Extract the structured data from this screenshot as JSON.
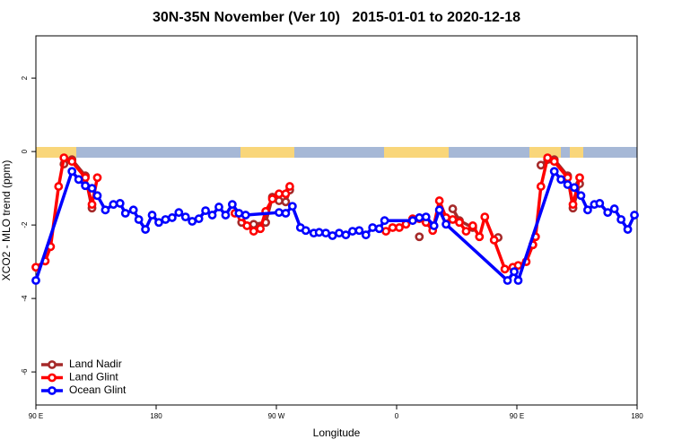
{
  "chart_data": {
    "type": "line",
    "title": "30N-35N November (Ver 10)   2015-01-01 to 2020-12-18",
    "x_label": "Longitude",
    "y_label": "XCO2 - MLO trend (ppm)",
    "xlim": [
      90,
      540
    ],
    "xticks": [
      {
        "value": 90,
        "label": "90 E"
      },
      {
        "value": 180,
        "label": "180"
      },
      {
        "value": 270,
        "label": "90 W"
      },
      {
        "value": 360,
        "label": "0"
      },
      {
        "value": 450,
        "label": "90 E"
      },
      {
        "value": 540,
        "label": "180"
      }
    ],
    "ylim": [
      -6.9,
      3.15
    ],
    "yticks": [
      -6,
      -4,
      -2,
      0,
      2
    ],
    "legend": "bottomleft",
    "series": [
      {
        "name": "Land Nadir",
        "color": "#a52a2a",
        "x": [
          111,
          117,
          127,
          132,
          null,
          244,
          253,
          262,
          267,
          272,
          277,
          280,
          null,
          377,
          null,
          402,
          407,
          417,
          null,
          436,
          null,
          468,
          473,
          478,
          488,
          492,
          497
        ],
        "values": [
          -0.34,
          -0.22,
          -0.66,
          -1.54,
          null,
          -1.93,
          -1.98,
          -1.93,
          -1.24,
          -1.34,
          -1.37,
          -1.05,
          null,
          -2.32,
          null,
          -1.56,
          -1.88,
          -2.07,
          null,
          -2.34,
          null,
          -0.37,
          -0.22,
          -0.22,
          -0.66,
          -1.54,
          -0.88
        ]
      },
      {
        "name": "Land Glint",
        "color": "#ff0000",
        "x": [
          90,
          97,
          101,
          107,
          111,
          117,
          127,
          132,
          136,
          null,
          239,
          244,
          248,
          253,
          258,
          262,
          267,
          272,
          277,
          280,
          null,
          352,
          357,
          362,
          367,
          372,
          377,
          382,
          387,
          392,
          397,
          402,
          407,
          412,
          417,
          422,
          426,
          433,
          441,
          447,
          451,
          457,
          462,
          464,
          468,
          473,
          478,
          488,
          492,
          497
        ],
        "values": [
          -3.15,
          -2.98,
          -2.59,
          -0.95,
          -0.17,
          -0.27,
          -0.71,
          -1.44,
          -0.71,
          null,
          -1.68,
          -1.78,
          -2.02,
          -2.17,
          -2.1,
          -1.63,
          -1.29,
          -1.15,
          -1.15,
          -0.95,
          null,
          -2.17,
          -2.07,
          -2.07,
          -1.98,
          -1.83,
          -1.83,
          -1.93,
          -2.15,
          -1.34,
          -1.8,
          -1.85,
          -1.93,
          -2.17,
          -2.02,
          -2.32,
          -1.78,
          -2.41,
          -3.2,
          -3.15,
          -3.1,
          -3.0,
          -2.54,
          -2.32,
          -0.95,
          -0.17,
          -0.27,
          -0.71,
          -1.44,
          -0.71
        ]
      },
      {
        "name": "Ocean Glint",
        "color": "#0000ff",
        "x": [
          90,
          117,
          122,
          127,
          132,
          136,
          142,
          148,
          153,
          157,
          163,
          167,
          172,
          177,
          182,
          187,
          192,
          197,
          202,
          207,
          212,
          217,
          222,
          227,
          232,
          237,
          242,
          247,
          272,
          277,
          282,
          288,
          292,
          298,
          302,
          307,
          312,
          317,
          322,
          327,
          332,
          337,
          342,
          347,
          351,
          372,
          377,
          382,
          388,
          392,
          397,
          443,
          448,
          451,
          478,
          483,
          488,
          493,
          498,
          503,
          508,
          512,
          518,
          523,
          528,
          533,
          538
        ],
        "values": [
          -3.51,
          -0.54,
          -0.76,
          -0.93,
          -1.0,
          -1.2,
          -1.59,
          -1.44,
          -1.41,
          -1.68,
          -1.59,
          -1.85,
          -2.12,
          -1.73,
          -1.93,
          -1.85,
          -1.8,
          -1.66,
          -1.78,
          -1.9,
          -1.83,
          -1.61,
          -1.73,
          -1.51,
          -1.73,
          -1.44,
          -1.68,
          -1.73,
          -1.66,
          -1.68,
          -1.49,
          -2.07,
          -2.15,
          -2.22,
          -2.2,
          -2.22,
          -2.29,
          -2.22,
          -2.27,
          -2.17,
          -2.15,
          -2.27,
          -2.07,
          -2.1,
          -1.88,
          -1.88,
          -1.8,
          -1.78,
          -2.02,
          -1.59,
          -1.98,
          -3.51,
          -3.27,
          -3.51,
          -0.54,
          -0.76,
          -0.9,
          -0.98,
          -1.2,
          -1.59,
          -1.44,
          -1.41,
          -1.66,
          -1.56,
          -1.85,
          -2.12,
          -1.73
        ]
      }
    ]
  }
}
